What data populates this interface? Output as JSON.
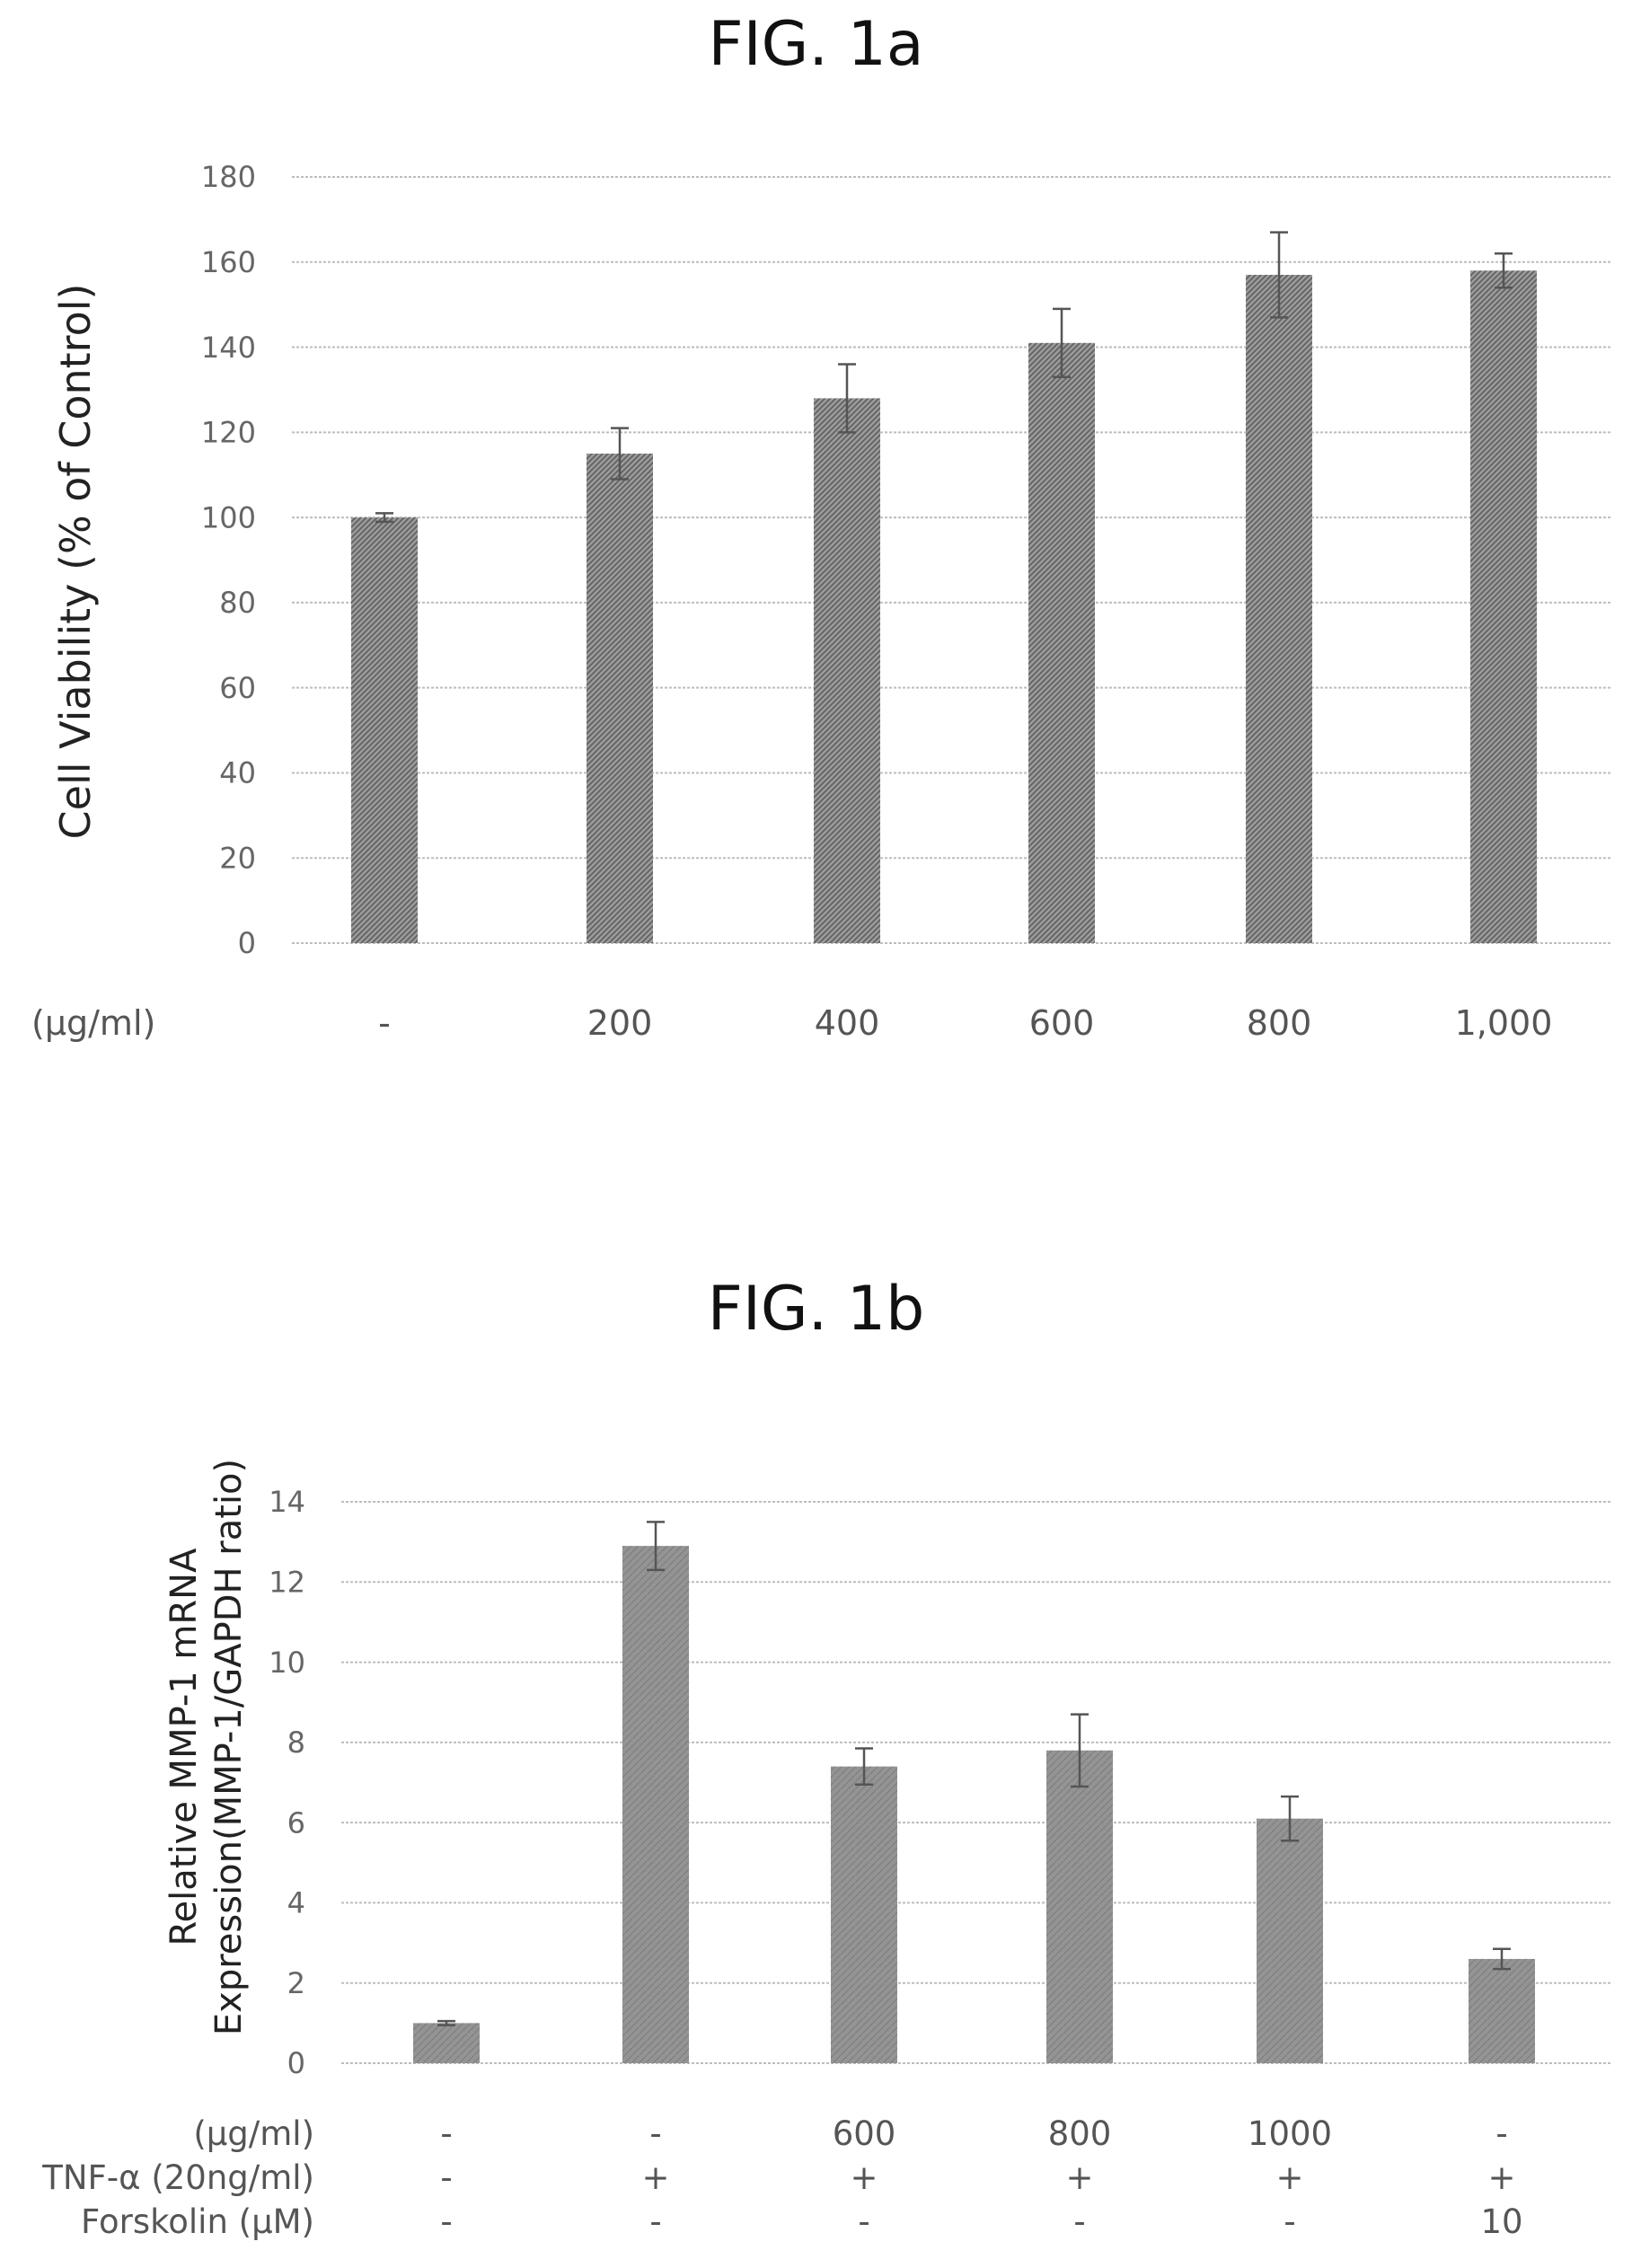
{
  "figures": [
    {
      "title": "FIG. 1a"
    },
    {
      "title": "FIG. 1b"
    }
  ],
  "colors": {
    "bar": "#8f8f8f",
    "bar_dark": "#6f6f6f",
    "grid": "#bdbdbd",
    "error": "#555555"
  },
  "chart_data": [
    {
      "type": "bar",
      "title": "FIG. 1a",
      "ylabel": "Cell Viability (% of Control)",
      "xlabel": "(μg/ml)",
      "categories": [
        "-",
        "200",
        "400",
        "600",
        "800",
        "1,000"
      ],
      "values": [
        100,
        115,
        128,
        141,
        157,
        158
      ],
      "errors": [
        1,
        6,
        8,
        8,
        10,
        4
      ],
      "ylim": [
        0,
        180
      ],
      "yticks": [
        "0",
        "20",
        "40",
        "60",
        "80",
        "100",
        "120",
        "140",
        "160",
        "180"
      ],
      "grid": true
    },
    {
      "type": "bar",
      "title": "FIG. 1b",
      "ylabel": [
        "Relative MMP-1 mRNA",
        "Expression(MMP-1/GAPDH ratio)"
      ],
      "values": [
        1.0,
        12.9,
        7.4,
        7.8,
        6.1,
        2.6
      ],
      "errors": [
        0.05,
        0.6,
        0.45,
        0.9,
        0.55,
        0.25
      ],
      "ylim": [
        0,
        14
      ],
      "yticks": [
        "0",
        "2",
        "4",
        "6",
        "8",
        "10",
        "12",
        "14"
      ],
      "grid": true,
      "conditions": [
        {
          "label": "(μg/ml)",
          "values": [
            "-",
            "-",
            "600",
            "800",
            "1000",
            "-"
          ]
        },
        {
          "label": "TNF-α (20ng/ml)",
          "values": [
            "-",
            "+",
            "+",
            "+",
            "+",
            "+"
          ]
        },
        {
          "label": "Forskolin (μM)",
          "values": [
            "-",
            "-",
            "-",
            "-",
            "-",
            "10"
          ]
        }
      ]
    }
  ]
}
